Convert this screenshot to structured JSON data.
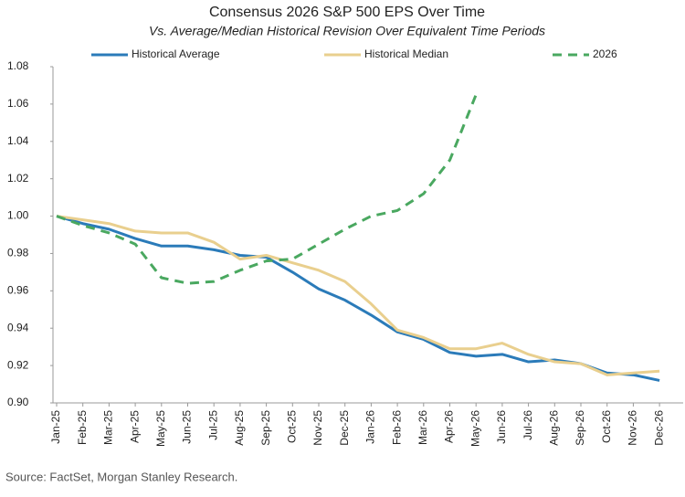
{
  "chart_data": {
    "type": "line",
    "title": "Consensus 2026 S&P 500 EPS Over Time",
    "subtitle": "Vs. Average/Median Historical Revision Over Equivalent Time Periods",
    "source": "Source: FactSet, Morgan Stanley Research.",
    "categories": [
      "Jan-25",
      "Feb-25",
      "Mar-25",
      "Apr-25",
      "May-25",
      "Jun-25",
      "Jul-25",
      "Aug-25",
      "Sep-25",
      "Oct-25",
      "Nov-25",
      "Dec-25",
      "Jan-26",
      "Feb-26",
      "Mar-26",
      "Apr-26",
      "May-26",
      "Jun-26",
      "Jul-26",
      "Aug-26",
      "Sep-26",
      "Oct-26",
      "Nov-26",
      "Dec-26"
    ],
    "series": [
      {
        "name": "Historical Average",
        "color": "#2b7bb9",
        "dash": false,
        "values": [
          1.0,
          0.996,
          0.993,
          0.988,
          0.984,
          0.984,
          0.982,
          0.979,
          0.978,
          0.97,
          0.961,
          0.955,
          0.947,
          0.938,
          0.934,
          0.927,
          0.925,
          0.926,
          0.922,
          0.923,
          0.921,
          0.916,
          0.915,
          0.912
        ]
      },
      {
        "name": "Historical Median",
        "color": "#e9cf8e",
        "dash": false,
        "values": [
          1.0,
          0.998,
          0.996,
          0.992,
          0.991,
          0.991,
          0.986,
          0.977,
          0.979,
          0.975,
          0.971,
          0.965,
          0.953,
          0.939,
          0.935,
          0.929,
          0.929,
          0.932,
          0.926,
          0.922,
          0.921,
          0.915,
          0.916,
          0.917
        ]
      },
      {
        "name": "2026",
        "color": "#4aa860",
        "dash": true,
        "values": [
          1.0,
          0.995,
          0.991,
          0.985,
          0.967,
          0.964,
          0.965,
          0.971,
          0.976,
          0.977,
          0.985,
          0.993,
          1.0,
          1.003,
          1.012,
          1.03,
          1.065,
          null,
          null,
          null,
          null,
          null,
          null,
          null
        ]
      }
    ],
    "ylim": [
      0.9,
      1.08
    ],
    "yticks": [
      {
        "value": 0.9,
        "label": "0.90"
      },
      0.92,
      0.94,
      0.96,
      0.98,
      {
        "value": 1.0,
        "label": "1.00"
      },
      1.02,
      1.04,
      1.06,
      1.08
    ]
  }
}
